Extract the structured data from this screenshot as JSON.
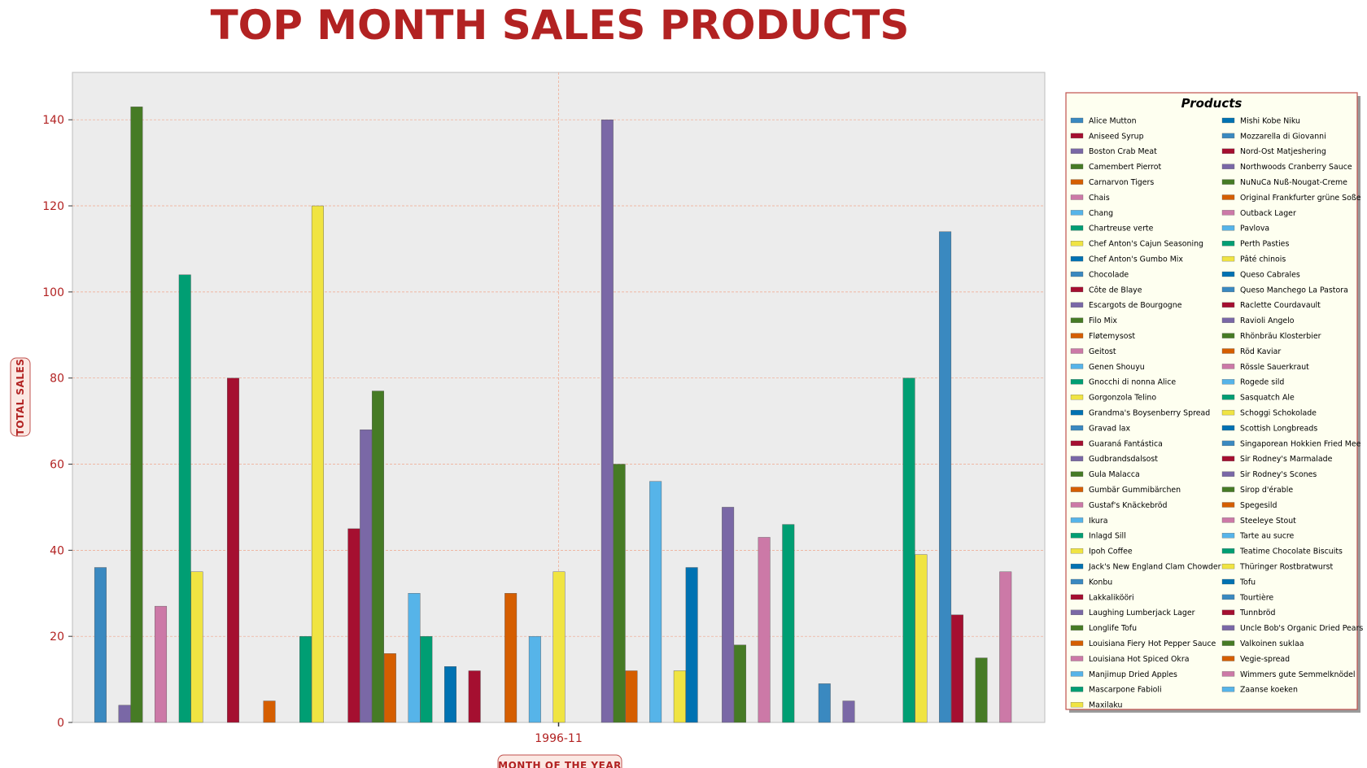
{
  "colors": {
    "title": "#b22222",
    "plot_bg": "#ececec",
    "grid": "#f0a58a",
    "legend_bg": "#fefff0",
    "legend_border": "#c0504d",
    "palette": [
      "#3a89c0",
      "#a50f30",
      "#7a68a6",
      "#467b25",
      "#d55e00",
      "#cc79a7",
      "#56b4e9",
      "#009e73",
      "#f0e442",
      "#0072b2"
    ]
  },
  "chart_data": {
    "type": "bar",
    "title": "TOP MONTH SALES PRODUCTS",
    "xlabel": "MONTH OF THE YEAR",
    "ylabel": "TOTAL SALES",
    "categories": [
      "1996-11"
    ],
    "ylim": [
      0,
      151
    ],
    "yticks": [
      0,
      20,
      40,
      60,
      80,
      100,
      120,
      140
    ],
    "grid": true,
    "legend_title": "Products",
    "legend_position": "right",
    "series": [
      {
        "name": "Alice Mutton",
        "values": [
          36
        ]
      },
      {
        "name": "Aniseed Syrup",
        "values": [
          0
        ]
      },
      {
        "name": "Boston Crab Meat",
        "values": [
          4
        ]
      },
      {
        "name": "Camembert Pierrot",
        "values": [
          143
        ]
      },
      {
        "name": "Carnarvon Tigers",
        "values": [
          0
        ]
      },
      {
        "name": "Chais",
        "values": [
          27
        ]
      },
      {
        "name": "Chang",
        "values": [
          0
        ]
      },
      {
        "name": "Chartreuse verte",
        "values": [
          104
        ]
      },
      {
        "name": "Chef Anton's Cajun Seasoning",
        "values": [
          35
        ]
      },
      {
        "name": "Chef Anton's Gumbo Mix",
        "values": [
          0
        ]
      },
      {
        "name": "Chocolade",
        "values": [
          0
        ]
      },
      {
        "name": "Côte de Blaye",
        "values": [
          80
        ]
      },
      {
        "name": "Escargots de Bourgogne",
        "values": [
          0
        ]
      },
      {
        "name": "Filo Mix",
        "values": [
          0
        ]
      },
      {
        "name": "Fløtemysost",
        "values": [
          5
        ]
      },
      {
        "name": "Geitost",
        "values": [
          0
        ]
      },
      {
        "name": "Genen Shouyu",
        "values": [
          0
        ]
      },
      {
        "name": "Gnocchi di nonna Alice",
        "values": [
          20
        ]
      },
      {
        "name": "Gorgonzola Telino",
        "values": [
          120
        ]
      },
      {
        "name": "Grandma's Boysenberry Spread",
        "values": [
          0
        ]
      },
      {
        "name": "Gravad lax",
        "values": [
          0
        ]
      },
      {
        "name": "Guaraná Fantástica",
        "values": [
          45
        ]
      },
      {
        "name": "Gudbrandsdalsost",
        "values": [
          68
        ]
      },
      {
        "name": "Gula Malacca",
        "values": [
          77
        ]
      },
      {
        "name": "Gumbär Gummibärchen",
        "values": [
          16
        ]
      },
      {
        "name": "Gustaf's Knäckebröd",
        "values": [
          0
        ]
      },
      {
        "name": "Ikura",
        "values": [
          30
        ]
      },
      {
        "name": "Inlagd Sill",
        "values": [
          20
        ]
      },
      {
        "name": "Ipoh Coffee",
        "values": [
          0
        ]
      },
      {
        "name": "Jack's New England Clam Chowder",
        "values": [
          13
        ]
      },
      {
        "name": "Konbu",
        "values": [
          0
        ]
      },
      {
        "name": "Lakkalikööri",
        "values": [
          12
        ]
      },
      {
        "name": "Laughing Lumberjack Lager",
        "values": [
          0
        ]
      },
      {
        "name": "Longlife Tofu",
        "values": [
          0
        ]
      },
      {
        "name": "Louisiana Fiery Hot Pepper Sauce",
        "values": [
          30
        ]
      },
      {
        "name": "Louisiana Hot Spiced Okra",
        "values": [
          0
        ]
      },
      {
        "name": "Manjimup Dried Apples",
        "values": [
          20
        ]
      },
      {
        "name": "Mascarpone Fabioli",
        "values": [
          0
        ]
      },
      {
        "name": "Maxilaku",
        "values": [
          35
        ]
      },
      {
        "name": "Mishi Kobe Niku",
        "values": [
          0
        ]
      },
      {
        "name": "Mozzarella di Giovanni",
        "values": [
          0
        ]
      },
      {
        "name": "Nord-Ost Matjeshering",
        "values": [
          0
        ]
      },
      {
        "name": "Northwoods Cranberry Sauce",
        "values": [
          140
        ]
      },
      {
        "name": "NuNuCa Nuß-Nougat-Creme",
        "values": [
          60
        ]
      },
      {
        "name": "Original Frankfurter grüne Soße",
        "values": [
          12
        ]
      },
      {
        "name": "Outback Lager",
        "values": [
          0
        ]
      },
      {
        "name": "Pavlova",
        "values": [
          56
        ]
      },
      {
        "name": "Perth Pasties",
        "values": [
          0
        ]
      },
      {
        "name": "Pâté chinois",
        "values": [
          12
        ]
      },
      {
        "name": "Queso Cabrales",
        "values": [
          36
        ]
      },
      {
        "name": "Queso Manchego La Pastora",
        "values": [
          0
        ]
      },
      {
        "name": "Raclette Courdavault",
        "values": [
          0
        ]
      },
      {
        "name": "Ravioli Angelo",
        "values": [
          50
        ]
      },
      {
        "name": "Rhönbräu Klosterbier",
        "values": [
          18
        ]
      },
      {
        "name": "Röd Kaviar",
        "values": [
          0
        ]
      },
      {
        "name": "Rössle Sauerkraut",
        "values": [
          43
        ]
      },
      {
        "name": "Rogede sild",
        "values": [
          0
        ]
      },
      {
        "name": "Sasquatch Ale",
        "values": [
          46
        ]
      },
      {
        "name": "Schoggi Schokolade",
        "values": [
          0
        ]
      },
      {
        "name": "Scottish Longbreads",
        "values": [
          0
        ]
      },
      {
        "name": "Singaporean Hokkien Fried Mee",
        "values": [
          9
        ]
      },
      {
        "name": "Sir Rodney's Marmalade",
        "values": [
          0
        ]
      },
      {
        "name": "Sir Rodney's Scones",
        "values": [
          5
        ]
      },
      {
        "name": "Sirop d'érable",
        "values": [
          0
        ]
      },
      {
        "name": "Spegesild",
        "values": [
          0
        ]
      },
      {
        "name": "Steeleye Stout",
        "values": [
          0
        ]
      },
      {
        "name": "Tarte au sucre",
        "values": [
          0
        ]
      },
      {
        "name": "Teatime Chocolate Biscuits",
        "values": [
          80
        ]
      },
      {
        "name": "Thüringer Rostbratwurst",
        "values": [
          39
        ]
      },
      {
        "name": "Tofu",
        "values": [
          0
        ]
      },
      {
        "name": "Tourtière",
        "values": [
          114
        ]
      },
      {
        "name": "Tunnbröd",
        "values": [
          25
        ]
      },
      {
        "name": "Uncle Bob's Organic Dried Pears",
        "values": [
          0
        ]
      },
      {
        "name": "Valkoinen suklaa",
        "values": [
          15
        ]
      },
      {
        "name": "Vegie-spread",
        "values": [
          0
        ]
      },
      {
        "name": "Wimmers gute Semmelknödel",
        "values": [
          35
        ]
      },
      {
        "name": "Zaanse koeken",
        "values": [
          0
        ]
      }
    ]
  }
}
